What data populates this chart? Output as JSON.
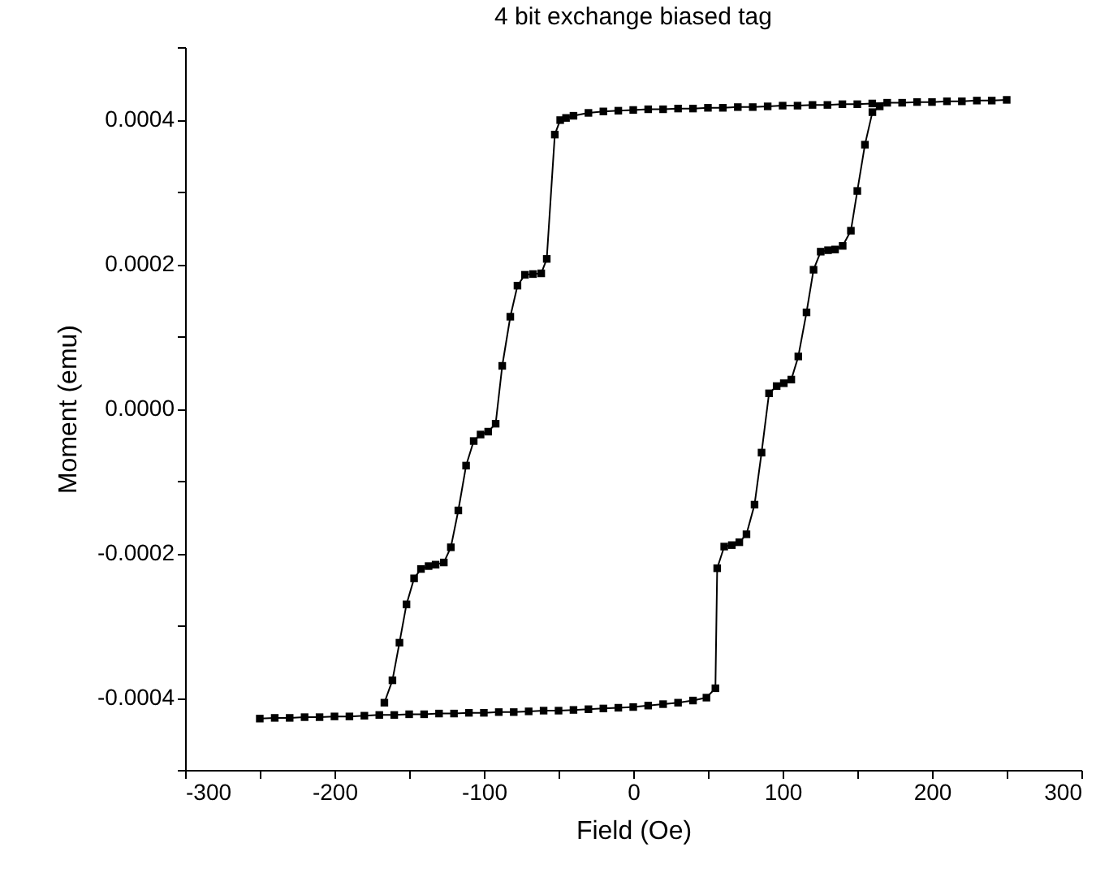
{
  "chart_data": {
    "type": "line",
    "title": "4 bit exchange biased tag",
    "xlabel": "Field (Oe)",
    "ylabel": "Moment (emu)",
    "xlim": [
      -300,
      300
    ],
    "xticks": [
      -300,
      {
        "value": -250,
        "label": null
      },
      -200,
      {
        "value": -150,
        "label": null
      },
      -100,
      {
        "value": -50,
        "label": null
      },
      0,
      {
        "value": 50,
        "label": null
      },
      100,
      {
        "value": 150,
        "label": null
      },
      200,
      {
        "value": 250,
        "label": null
      },
      300
    ],
    "ylim": [
      -0.0005,
      0.0005
    ],
    "yticks": [
      {
        "value": -0.0005,
        "label": null
      },
      {
        "value": -0.0004,
        "label": "-0.0004"
      },
      {
        "value": -0.0003,
        "label": null
      },
      {
        "value": -0.0002,
        "label": "-0.0002"
      },
      {
        "value": -0.0001,
        "label": null
      },
      {
        "value": 0,
        "label": "0.0000"
      },
      {
        "value": 0.0001,
        "label": null
      },
      {
        "value": 0.0002,
        "label": "0.0002"
      },
      {
        "value": 0.0003,
        "label": null
      },
      {
        "value": 0.0004,
        "label": "0.0004"
      },
      {
        "value": 0.0005,
        "label": null
      }
    ],
    "grid": false,
    "marker": "square",
    "line_style": "solid",
    "series": [
      {
        "color": "#000000",
        "x": [
          250,
          240,
          230,
          220,
          210,
          200,
          190,
          180,
          170,
          160,
          150,
          140,
          130,
          120,
          110,
          100,
          90,
          80,
          70,
          60,
          50,
          40,
          30,
          20,
          10,
          0,
          -10,
          -20,
          -30,
          -40,
          -45,
          -48.9,
          -52.5,
          -57.9,
          -61.6,
          -67.1,
          -72.5,
          -77.5,
          -82.3,
          -87.7,
          -92.1,
          -97.1,
          -102.2,
          -106.8,
          -111.9,
          -117.1,
          -122.1,
          -126.8,
          -132.3,
          -137,
          -142.1,
          -146.7,
          -151.8,
          -156.5,
          -161.2,
          -166.6
        ],
        "values": [
          0.000427,
          0.000426,
          0.000426,
          0.000425,
          0.000425,
          0.000424,
          0.000424,
          0.000423,
          0.000423,
          0.000422,
          0.000421,
          0.000421,
          0.00042,
          0.00042,
          0.000419,
          0.000419,
          0.000418,
          0.000417,
          0.000417,
          0.000416,
          0.000416,
          0.000415,
          0.000415,
          0.000414,
          0.000414,
          0.000413,
          0.000412,
          0.000411,
          0.000409,
          0.000405,
          0.000402,
          0.000399,
          0.000379,
          0.000207,
          0.000187,
          0.000186,
          0.000185,
          0.00017,
          0.000127,
          5.9e-05,
          -2.1e-05,
          -3.2e-05,
          -3.6e-05,
          -4.5e-05,
          -7.9e-05,
          -0.000141,
          -0.000192,
          -0.000213,
          -0.000216,
          -0.000218,
          -0.000222,
          -0.000235,
          -0.000271,
          -0.000324,
          -0.000376,
          -0.000407
        ]
      },
      {
        "color": "#000000",
        "x": [
          -250,
          -240,
          -230,
          -220,
          -210,
          -200,
          -190,
          -180,
          -170,
          -160,
          -150,
          -140,
          -130,
          -120,
          -110,
          -100,
          -90,
          -80,
          -70,
          -60,
          -50,
          -40,
          -30,
          -20,
          -10,
          0,
          10,
          20,
          30,
          40,
          49,
          55,
          56.2,
          60.9,
          66,
          71,
          75.8,
          81.2,
          85.9,
          90.9,
          96,
          100.8,
          105.8,
          110.5,
          116,
          120.7,
          125.5,
          130.4,
          135.1,
          140.2,
          145.7,
          150,
          155.1,
          160.1,
          165
        ],
        "values": [
          -0.000429,
          -0.000428,
          -0.000428,
          -0.000427,
          -0.000427,
          -0.000426,
          -0.000426,
          -0.000425,
          -0.000424,
          -0.000424,
          -0.000423,
          -0.000423,
          -0.000422,
          -0.000422,
          -0.000421,
          -0.000421,
          -0.00042,
          -0.00042,
          -0.000419,
          -0.000418,
          -0.000418,
          -0.000417,
          -0.000416,
          -0.000415,
          -0.000414,
          -0.000413,
          -0.000411,
          -0.000409,
          -0.000407,
          -0.000404,
          -0.0004,
          -0.000387,
          -0.000221,
          -0.000191,
          -0.000189,
          -0.000185,
          -0.000174,
          -0.000133,
          -6.1e-05,
          2.1e-05,
          3.1e-05,
          3.5e-05,
          4e-05,
          7.2e-05,
          0.000133,
          0.000192,
          0.000217,
          0.000219,
          0.00022,
          0.000225,
          0.000246,
          0.000301,
          0.000365,
          0.00041,
          0.000418
        ]
      }
    ]
  }
}
